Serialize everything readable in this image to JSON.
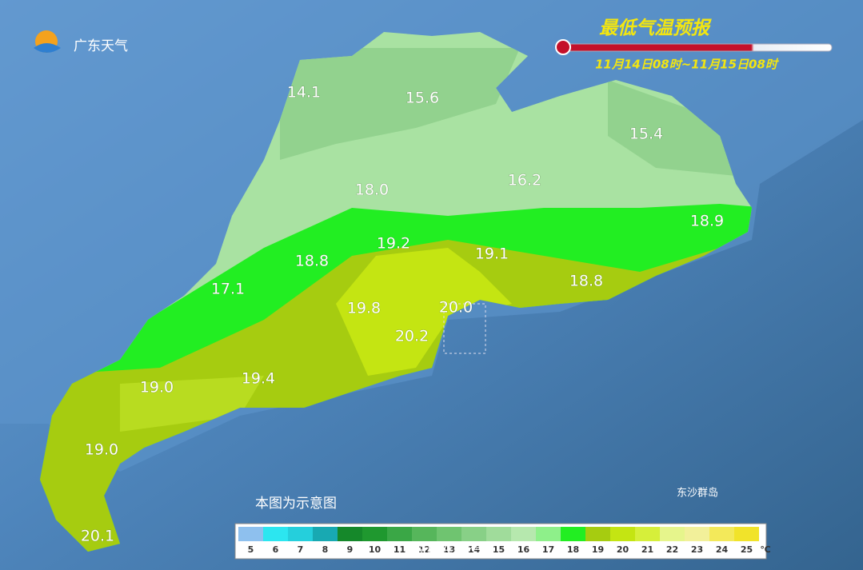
{
  "header": {
    "logo_text": "广东天气",
    "title": "最低气温预报",
    "period": "11月14日08时~11月15日08时"
  },
  "map": {
    "labels": [
      "14.1",
      "15.6",
      "15.4",
      "16.2",
      "18.0",
      "18.9",
      "19.2",
      "19.1",
      "18.8",
      "18.8",
      "17.1",
      "19.8",
      "20.0",
      "20.2",
      "19.0",
      "19.4",
      "19.0",
      "20.1"
    ],
    "note": "本图为示意图",
    "island": "东沙群岛"
  },
  "legend": {
    "items": [
      {
        "label": "5",
        "color": "#8ec0ee"
      },
      {
        "label": "6",
        "color": "#2ce6f0"
      },
      {
        "label": "7",
        "color": "#25cfdc"
      },
      {
        "label": "8",
        "color": "#18a9b2"
      },
      {
        "label": "9",
        "color": "#15882a"
      },
      {
        "label": "10",
        "color": "#1f982f"
      },
      {
        "label": "11",
        "color": "#3aa746"
      },
      {
        "label": "12",
        "color": "#56b65b"
      },
      {
        "label": "13",
        "color": "#6fc470"
      },
      {
        "label": "14",
        "color": "#88d087"
      },
      {
        "label": "15",
        "color": "#a0dc9b"
      },
      {
        "label": "16",
        "color": "#b6e8ae"
      },
      {
        "label": "17",
        "color": "#8ef08a"
      },
      {
        "label": "18",
        "color": "#22ee22"
      },
      {
        "label": "19",
        "color": "#a6cc10"
      },
      {
        "label": "20",
        "color": "#c4e512"
      },
      {
        "label": "21",
        "color": "#d6ef3a"
      },
      {
        "label": "22",
        "color": "#e6f58c"
      },
      {
        "label": "23",
        "color": "#f2f09a"
      },
      {
        "label": "24",
        "color": "#f3e95a"
      },
      {
        "label": "25",
        "color": "#f1e32a"
      }
    ],
    "unit": "℃"
  },
  "watermark": "@广东天气"
}
